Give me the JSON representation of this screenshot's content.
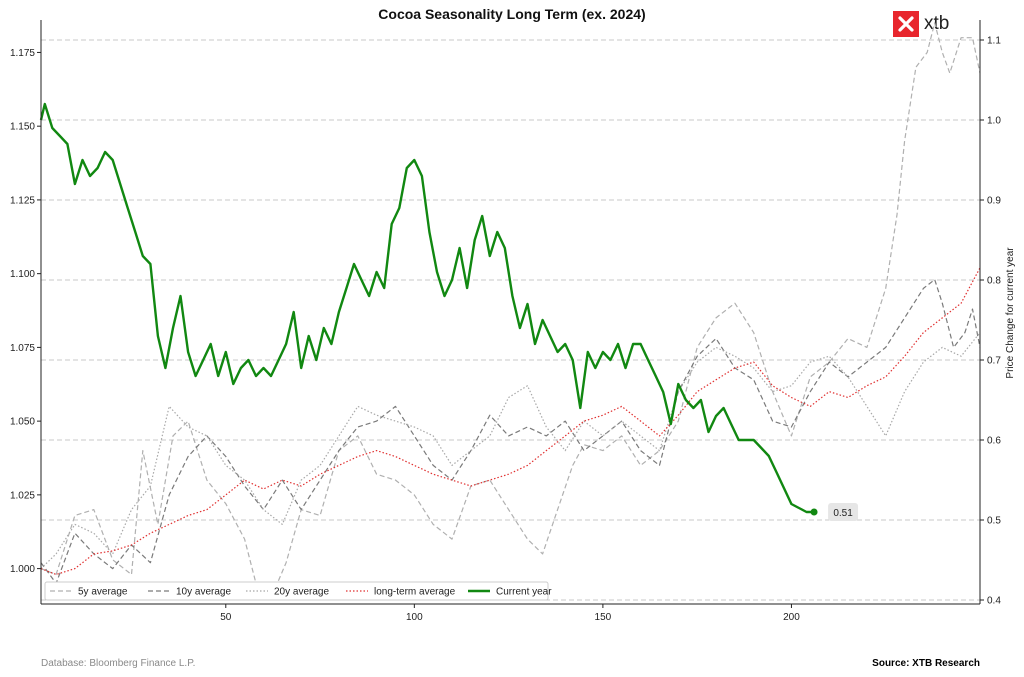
{
  "title": "Cocoa Seasonality Long Term (ex. 2024)",
  "brand": {
    "name": "xtb",
    "color": "#e8262d"
  },
  "footer": {
    "left": "Database: Bloomberg Finance L.P.",
    "right": "Source: XTB Research"
  },
  "chart_data": {
    "type": "line",
    "title": "Cocoa Seasonality Long Term (ex. 2024)",
    "xlabel": "",
    "ylabel_left": "",
    "ylabel_right": "Price Change for current year",
    "xlim": [
      1,
      250
    ],
    "xticks": [
      50,
      100,
      150,
      200
    ],
    "ylim_left": [
      0.988,
      1.186
    ],
    "yticks_left": [
      1.0,
      1.025,
      1.05,
      1.075,
      1.1,
      1.125,
      1.15,
      1.175
    ],
    "ytick_labels_left": [
      "1.000",
      "1.025",
      "1.050",
      "1.075",
      "1.100",
      "1.125",
      "1.150",
      "1.175"
    ],
    "ylim_right": [
      0.395,
      1.125
    ],
    "yticks_right": [
      0.4,
      0.5,
      0.6,
      0.7,
      0.8,
      0.9,
      1.0,
      1.1
    ],
    "ytick_labels_right": [
      "0.4",
      "0.5",
      "0.6",
      "0.7",
      "0.8",
      "0.9",
      "1.0",
      "1.1"
    ],
    "grid": "horizontal dashed (right axis)",
    "legend_position": "bottom-left",
    "series": [
      {
        "name": "5y average",
        "axis": "left",
        "color": "#b0b0b0",
        "style": "dashed",
        "x": [
          1,
          5,
          10,
          15,
          20,
          25,
          28,
          32,
          36,
          40,
          45,
          50,
          55,
          58,
          62,
          66,
          70,
          75,
          80,
          85,
          90,
          95,
          100,
          105,
          110,
          115,
          120,
          125,
          130,
          134,
          138,
          142,
          145,
          150,
          155,
          160,
          165,
          170,
          175,
          180,
          185,
          190,
          195,
          200,
          205,
          210,
          215,
          220,
          225,
          228,
          230,
          233,
          236,
          238,
          240,
          242,
          245,
          248,
          250
        ],
        "y": [
          1.0,
          0.998,
          1.018,
          1.02,
          1.003,
          0.998,
          1.04,
          1.015,
          1.045,
          1.05,
          1.03,
          1.022,
          1.01,
          0.995,
          0.99,
          1.002,
          1.02,
          1.018,
          1.04,
          1.045,
          1.032,
          1.03,
          1.025,
          1.015,
          1.01,
          1.028,
          1.03,
          1.02,
          1.01,
          1.005,
          1.02,
          1.035,
          1.042,
          1.04,
          1.045,
          1.035,
          1.04,
          1.05,
          1.075,
          1.085,
          1.09,
          1.08,
          1.06,
          1.045,
          1.065,
          1.07,
          1.078,
          1.075,
          1.095,
          1.12,
          1.145,
          1.17,
          1.175,
          1.185,
          1.175,
          1.168,
          1.18,
          1.18,
          1.168
        ]
      },
      {
        "name": "10y average",
        "axis": "left",
        "color": "#7a7a7a",
        "style": "dashed",
        "x": [
          1,
          5,
          10,
          15,
          20,
          25,
          30,
          35,
          40,
          45,
          50,
          55,
          60,
          65,
          70,
          75,
          80,
          85,
          90,
          95,
          100,
          105,
          110,
          115,
          120,
          125,
          130,
          135,
          140,
          145,
          150,
          155,
          160,
          165,
          170,
          175,
          180,
          185,
          190,
          195,
          200,
          205,
          210,
          215,
          220,
          225,
          230,
          235,
          238,
          240,
          243,
          246,
          248,
          250
        ],
        "y": [
          1.002,
          0.995,
          1.012,
          1.005,
          1.0,
          1.008,
          1.002,
          1.025,
          1.038,
          1.045,
          1.038,
          1.028,
          1.02,
          1.03,
          1.02,
          1.03,
          1.04,
          1.048,
          1.05,
          1.055,
          1.045,
          1.035,
          1.03,
          1.04,
          1.052,
          1.045,
          1.048,
          1.045,
          1.05,
          1.04,
          1.045,
          1.05,
          1.04,
          1.035,
          1.06,
          1.072,
          1.078,
          1.068,
          1.064,
          1.05,
          1.048,
          1.06,
          1.07,
          1.065,
          1.07,
          1.075,
          1.085,
          1.095,
          1.098,
          1.09,
          1.075,
          1.08,
          1.088,
          1.075
        ]
      },
      {
        "name": "20y average",
        "axis": "left",
        "color": "#a8a8a8",
        "style": "dotted",
        "x": [
          1,
          5,
          10,
          15,
          20,
          25,
          30,
          35,
          40,
          45,
          50,
          55,
          60,
          65,
          70,
          75,
          80,
          85,
          90,
          95,
          100,
          105,
          110,
          115,
          120,
          125,
          130,
          135,
          140,
          145,
          150,
          155,
          160,
          165,
          170,
          175,
          180,
          185,
          190,
          195,
          200,
          205,
          210,
          215,
          220,
          225,
          230,
          235,
          240,
          245,
          250
        ],
        "y": [
          1.0,
          1.005,
          1.015,
          1.012,
          1.005,
          1.02,
          1.028,
          1.055,
          1.048,
          1.045,
          1.035,
          1.03,
          1.02,
          1.015,
          1.03,
          1.035,
          1.045,
          1.055,
          1.052,
          1.05,
          1.048,
          1.045,
          1.035,
          1.04,
          1.045,
          1.058,
          1.062,
          1.048,
          1.04,
          1.05,
          1.045,
          1.05,
          1.045,
          1.04,
          1.06,
          1.07,
          1.075,
          1.072,
          1.068,
          1.06,
          1.062,
          1.07,
          1.072,
          1.065,
          1.055,
          1.045,
          1.06,
          1.07,
          1.075,
          1.072,
          1.08
        ]
      },
      {
        "name": "long-term average",
        "axis": "left",
        "color": "#e03030",
        "style": "dotted",
        "x": [
          1,
          5,
          10,
          15,
          20,
          25,
          30,
          35,
          40,
          45,
          50,
          55,
          60,
          65,
          70,
          75,
          80,
          85,
          90,
          95,
          100,
          105,
          110,
          115,
          120,
          125,
          130,
          135,
          140,
          145,
          150,
          155,
          160,
          165,
          170,
          175,
          180,
          185,
          190,
          195,
          200,
          205,
          210,
          215,
          220,
          225,
          230,
          235,
          240,
          245,
          250
        ],
        "y": [
          1.0,
          0.998,
          1.0,
          1.005,
          1.006,
          1.008,
          1.012,
          1.015,
          1.018,
          1.02,
          1.025,
          1.03,
          1.027,
          1.03,
          1.028,
          1.032,
          1.035,
          1.038,
          1.04,
          1.038,
          1.035,
          1.032,
          1.03,
          1.028,
          1.03,
          1.032,
          1.035,
          1.04,
          1.045,
          1.05,
          1.052,
          1.055,
          1.05,
          1.045,
          1.052,
          1.06,
          1.064,
          1.068,
          1.07,
          1.062,
          1.058,
          1.055,
          1.06,
          1.058,
          1.062,
          1.065,
          1.072,
          1.08,
          1.085,
          1.09,
          1.102
        ]
      },
      {
        "name": "Current year",
        "axis": "right",
        "color": "#118811",
        "style": "solid",
        "x": [
          1,
          2,
          4,
          6,
          8,
          10,
          12,
          14,
          16,
          18,
          20,
          22,
          24,
          26,
          28,
          30,
          32,
          34,
          36,
          38,
          40,
          42,
          44,
          46,
          48,
          50,
          52,
          54,
          56,
          58,
          60,
          62,
          64,
          66,
          68,
          70,
          72,
          74,
          76,
          78,
          80,
          82,
          84,
          86,
          88,
          90,
          92,
          94,
          96,
          98,
          100,
          102,
          104,
          106,
          108,
          110,
          112,
          114,
          116,
          118,
          120,
          122,
          124,
          126,
          128,
          130,
          132,
          134,
          136,
          138,
          140,
          142,
          144,
          146,
          148,
          150,
          152,
          154,
          156,
          158,
          160,
          162,
          164,
          166,
          168,
          170,
          172,
          174,
          176,
          178,
          180,
          182,
          184,
          186,
          188,
          190,
          192,
          194,
          196,
          198,
          200,
          202,
          204,
          206
        ],
        "y": [
          1.0,
          1.02,
          0.99,
          0.98,
          0.97,
          0.92,
          0.95,
          0.93,
          0.94,
          0.96,
          0.95,
          0.92,
          0.89,
          0.86,
          0.83,
          0.82,
          0.73,
          0.69,
          0.74,
          0.78,
          0.71,
          0.68,
          0.7,
          0.72,
          0.68,
          0.71,
          0.67,
          0.69,
          0.7,
          0.68,
          0.69,
          0.68,
          0.7,
          0.72,
          0.76,
          0.69,
          0.73,
          0.7,
          0.74,
          0.72,
          0.76,
          0.79,
          0.82,
          0.8,
          0.78,
          0.81,
          0.79,
          0.87,
          0.89,
          0.94,
          0.95,
          0.93,
          0.86,
          0.81,
          0.78,
          0.8,
          0.84,
          0.79,
          0.85,
          0.88,
          0.83,
          0.86,
          0.84,
          0.78,
          0.74,
          0.77,
          0.72,
          0.75,
          0.73,
          0.71,
          0.72,
          0.7,
          0.64,
          0.71,
          0.69,
          0.71,
          0.7,
          0.72,
          0.69,
          0.72,
          0.72,
          0.7,
          0.68,
          0.66,
          0.62,
          0.67,
          0.65,
          0.64,
          0.65,
          0.61,
          0.63,
          0.64,
          0.62,
          0.6,
          0.6,
          0.6,
          0.59,
          0.58,
          0.56,
          0.54,
          0.52,
          0.515,
          0.51,
          0.51
        ]
      }
    ],
    "annotations": [
      {
        "text": "0.51",
        "series": "Current year"
      }
    ]
  }
}
